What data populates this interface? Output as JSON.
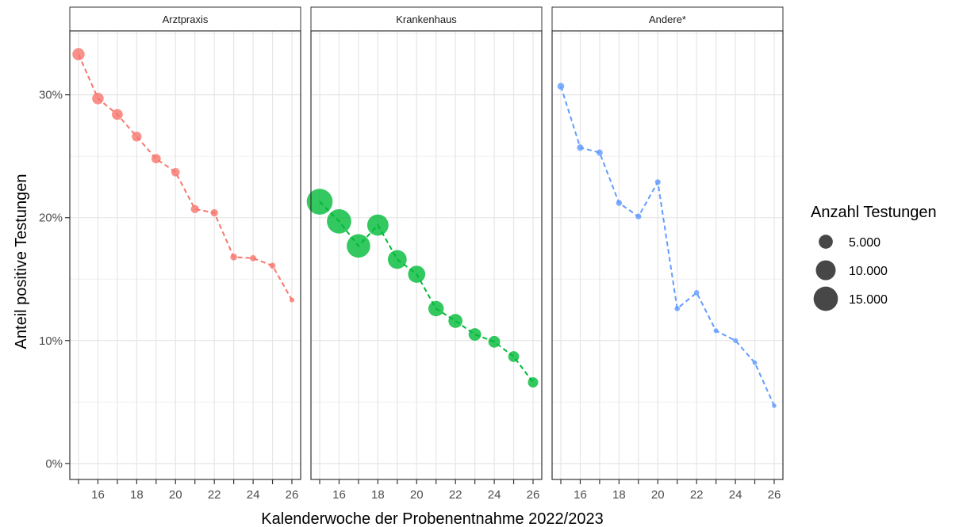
{
  "chart_data": {
    "type": "scatter",
    "xlabel": "Kalenderwoche der Probenentnahme 2022/2023",
    "ylabel": "Anteil positive Testungen",
    "x": [
      15,
      16,
      17,
      18,
      19,
      20,
      21,
      22,
      23,
      24,
      25,
      26
    ],
    "xlim": [
      14.55,
      26.45
    ],
    "x_tick_values": [
      16,
      18,
      20,
      22,
      24,
      26
    ],
    "ylim": [
      -1.3,
      35.2
    ],
    "y_ticks": [
      {
        "value": 0,
        "label": "0%"
      },
      {
        "value": 10,
        "label": "10%"
      },
      {
        "value": 20,
        "label": "20%"
      },
      {
        "value": 30,
        "label": "30%"
      }
    ],
    "grid": true,
    "line_style": "dashed",
    "panels": [
      {
        "label": "Arztpraxis",
        "color": "#F8766D",
        "y": [
          33.3,
          29.7,
          28.4,
          26.6,
          24.8,
          23.7,
          20.7,
          20.4,
          16.8,
          16.7,
          16.1,
          13.3
        ],
        "size": [
          3800,
          3400,
          3000,
          2400,
          2200,
          1800,
          1700,
          1400,
          1200,
          1000,
          900,
          600
        ]
      },
      {
        "label": "Krankenhaus",
        "color": "#00BA38",
        "y": [
          21.3,
          19.7,
          17.7,
          19.4,
          16.6,
          15.4,
          12.6,
          11.6,
          10.5,
          9.9,
          8.7,
          6.6
        ],
        "size": [
          17000,
          15000,
          14000,
          11500,
          9000,
          7500,
          6000,
          5000,
          4000,
          3500,
          3000,
          2700
        ]
      },
      {
        "label": "Andere*",
        "color": "#619CFF",
        "y": [
          30.7,
          25.7,
          25.3,
          21.2,
          20.1,
          22.9,
          12.6,
          13.9,
          10.8,
          10.0,
          8.2,
          4.7
        ],
        "size": [
          1200,
          1100,
          1000,
          900,
          850,
          800,
          700,
          700,
          600,
          600,
          550,
          500
        ]
      }
    ],
    "legend": {
      "title": "Anzahl Testungen",
      "placement": "right",
      "color": "#333333",
      "entries": [
        {
          "value": 5000,
          "label": "5.000"
        },
        {
          "value": 10000,
          "label": "10.000"
        },
        {
          "value": 15000,
          "label": "15.000"
        }
      ]
    }
  }
}
